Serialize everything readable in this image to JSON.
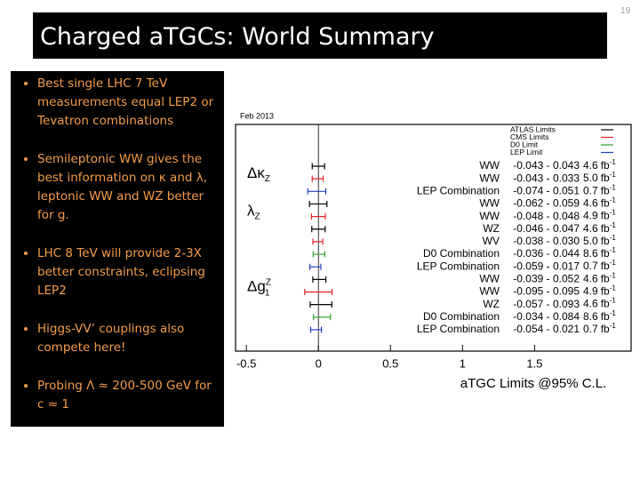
{
  "page_number": "19",
  "title": "Charged aTGCs: World Summary",
  "bullets": [
    "Best single LHC 7 TeV measurements equal LEP2 or Tevatron combinations",
    "Semileptonic WW gives the best information on κ and λ, leptonic WW and WZ better for g.",
    "LHC 8 TeV will provide 2-3X better constraints, eclipsing LEP2",
    "Higgs-VV’ couplings also compete here!",
    "Probing Λ ≈ 200-500 GeV for c ≈ 1"
  ],
  "chart_data": {
    "type": "interval",
    "date": "Feb 2013",
    "x_label": "aTGC Limits @95% C.L.",
    "xlim": [
      -0.575,
      2.17
    ],
    "xticks": [
      -0.5,
      0,
      0.5,
      1,
      1.5
    ],
    "lumi_unit": "fb",
    "lumi_exp": "-1",
    "legend": [
      {
        "name": "ATLAS Limits",
        "color": "#000000"
      },
      {
        "name": "CMS Limits",
        "color": "#e0262a"
      },
      {
        "name": "D0 Limit",
        "color": "#2ca02c"
      },
      {
        "name": "LEP Limit",
        "color": "#1f3fbf"
      }
    ],
    "parameters": [
      {
        "symbol": "Δκ",
        "sub": "Z",
        "sup": null
      },
      {
        "symbol": "λ",
        "sub": "Z",
        "sup": null
      },
      {
        "symbol": "Δg",
        "sub": "1",
        "sup": "Z"
      }
    ],
    "rows": [
      {
        "parameter": 0,
        "experiment": 0,
        "name": "WW",
        "low": -0.043,
        "high": 0.043,
        "range_label": "-0.043 - 0.043",
        "lumi": 4.6
      },
      {
        "parameter": 0,
        "experiment": 1,
        "name": "WW",
        "low": -0.043,
        "high": 0.033,
        "range_label": "-0.043 - 0.033",
        "lumi": 5.0,
        "lumi_label": "5.0"
      },
      {
        "parameter": 0,
        "experiment": 3,
        "name": "LEP Combination",
        "low": -0.074,
        "high": 0.051,
        "range_label": "-0.074 - 0.051",
        "lumi": 0.7
      },
      {
        "parameter": 1,
        "experiment": 0,
        "name": "WW",
        "low": -0.062,
        "high": 0.059,
        "range_label": "-0.062 - 0.059",
        "lumi": 4.6
      },
      {
        "parameter": 1,
        "experiment": 1,
        "name": "WW",
        "low": -0.048,
        "high": 0.048,
        "range_label": "-0.048 - 0.048",
        "lumi": 4.9
      },
      {
        "parameter": 1,
        "experiment": 0,
        "name": "WZ",
        "low": -0.046,
        "high": 0.047,
        "range_label": "-0.046 - 0.047",
        "lumi": 4.6
      },
      {
        "parameter": 1,
        "experiment": 1,
        "name": "WV",
        "low": -0.038,
        "high": 0.03,
        "range_label": "-0.038 - 0.030",
        "lumi": 5.0,
        "lumi_label": "5.0"
      },
      {
        "parameter": 1,
        "experiment": 2,
        "name": "D0 Combination",
        "low": -0.036,
        "high": 0.044,
        "range_label": "-0.036 - 0.044",
        "lumi": 8.6
      },
      {
        "parameter": 1,
        "experiment": 3,
        "name": "LEP Combination",
        "low": -0.059,
        "high": 0.017,
        "range_label": "-0.059 - 0.017",
        "lumi": 0.7
      },
      {
        "parameter": 2,
        "experiment": 0,
        "name": "WW",
        "low": -0.039,
        "high": 0.052,
        "range_label": "-0.039 - 0.052",
        "lumi": 4.6
      },
      {
        "parameter": 2,
        "experiment": 1,
        "name": "WW",
        "low": -0.095,
        "high": 0.095,
        "range_label": "-0.095 - 0.095",
        "lumi": 4.9
      },
      {
        "parameter": 2,
        "experiment": 0,
        "name": "WZ",
        "low": -0.057,
        "high": 0.093,
        "range_label": "-0.057 - 0.093",
        "lumi": 4.6
      },
      {
        "parameter": 2,
        "experiment": 2,
        "name": "D0 Combination",
        "low": -0.034,
        "high": 0.084,
        "range_label": "-0.034 - 0.084",
        "lumi": 8.6
      },
      {
        "parameter": 2,
        "experiment": 3,
        "name": "LEP Combination",
        "low": -0.054,
        "high": 0.021,
        "range_label": "-0.054 - 0.021",
        "lumi": 0.7
      }
    ]
  }
}
